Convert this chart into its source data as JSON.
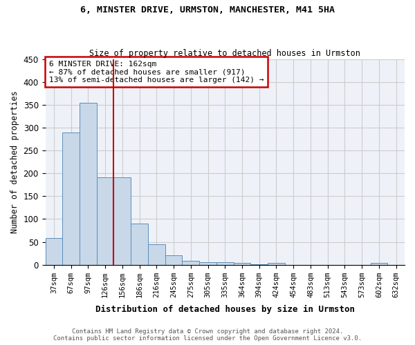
{
  "title_line1": "6, MINSTER DRIVE, URMSTON, MANCHESTER, M41 5HA",
  "title_line2": "Size of property relative to detached houses in Urmston",
  "xlabel": "Distribution of detached houses by size in Urmston",
  "ylabel": "Number of detached properties",
  "categories": [
    "37sqm",
    "67sqm",
    "97sqm",
    "126sqm",
    "156sqm",
    "186sqm",
    "216sqm",
    "245sqm",
    "275sqm",
    "305sqm",
    "335sqm",
    "364sqm",
    "394sqm",
    "424sqm",
    "454sqm",
    "483sqm",
    "513sqm",
    "543sqm",
    "573sqm",
    "602sqm",
    "632sqm"
  ],
  "values": [
    58,
    290,
    355,
    192,
    192,
    90,
    45,
    20,
    9,
    5,
    5,
    4,
    1,
    4,
    0,
    0,
    0,
    0,
    0,
    4,
    0
  ],
  "bar_color": "#c8d8e8",
  "bar_edge_color": "#5b8db8",
  "annotation_title": "6 MINSTER DRIVE: 162sqm",
  "annotation_line2": "← 87% of detached houses are smaller (917)",
  "annotation_line3": "13% of semi-detached houses are larger (142) →",
  "red_line_x": 3.5,
  "box_color": "#cc0000",
  "ylim": [
    0,
    450
  ],
  "yticks": [
    0,
    50,
    100,
    150,
    200,
    250,
    300,
    350,
    400,
    450
  ],
  "footnote_line1": "Contains HM Land Registry data © Crown copyright and database right 2024.",
  "footnote_line2": "Contains public sector information licensed under the Open Government Licence v3.0.",
  "background_color": "#ffffff",
  "grid_color": "#cccccc"
}
